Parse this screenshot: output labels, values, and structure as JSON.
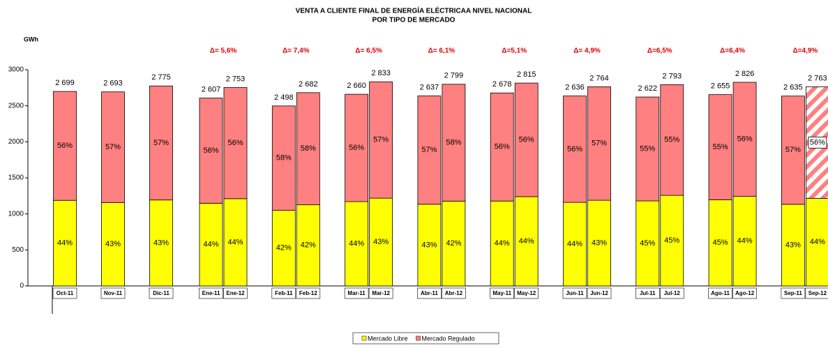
{
  "chart_data": {
    "type": "stacked_bar",
    "title": "VENTA A  CLIENTE FINAL DE ENERGÍA ELÉCTRICAA NIVEL NACIONAL",
    "subtitle": "POR TIPO DE MERCADO",
    "y_axis_label": "GWh",
    "categories": [
      "Oct-11",
      "Nov-11",
      "Dic-11",
      "Ene-11",
      "Ene-12",
      "Feb-11",
      "Feb-12",
      "Mar-11",
      "Mar-12",
      "Abr-11",
      "Abr-12",
      "May-11",
      "May-12",
      "Jun-11",
      "Jun-12",
      "Jul-11",
      "Jul-12",
      "Ago-11",
      "Ago-12",
      "Sep-11",
      "Sep-12"
    ],
    "series": [
      {
        "name": "Mercado Libre",
        "color": "#ffff00",
        "values": [
          1188,
          1158,
          1193,
          1147,
          1211,
          1049,
          1126,
          1170,
          1218,
          1134,
          1176,
          1178,
          1239,
          1160,
          1189,
          1180,
          1257,
          1195,
          1243,
          1133,
          1216
        ],
        "share_labels": [
          "44%",
          "43%",
          "43%",
          "44%",
          "44%",
          "42%",
          "42%",
          "44%",
          "43%",
          "43%",
          "42%",
          "44%",
          "44%",
          "44%",
          "43%",
          "45%",
          "45%",
          "45%",
          "44%",
          "43%",
          "44%"
        ]
      },
      {
        "name": "Mercado Regulado",
        "color": "#ff8080",
        "values": [
          1511,
          1535,
          1582,
          1460,
          1542,
          1449,
          1556,
          1490,
          1615,
          1503,
          1623,
          1500,
          1576,
          1476,
          1575,
          1442,
          1536,
          1460,
          1583,
          1502,
          1547
        ],
        "share_labels": [
          "56%",
          "57%",
          "57%",
          "56%",
          "56%",
          "58%",
          "58%",
          "56%",
          "57%",
          "57%",
          "58%",
          "56%",
          "56%",
          "56%",
          "57%",
          "55%",
          "55%",
          "55%",
          "56%",
          "57%",
          "56%"
        ],
        "hatched": [
          20
        ]
      }
    ],
    "totals": [
      2699,
      2693,
      2775,
      2607,
      2753,
      2498,
      2682,
      2660,
      2833,
      2637,
      2799,
      2678,
      2815,
      2636,
      2764,
      2622,
      2793,
      2655,
      2826,
      2635,
      2763
    ],
    "total_labels": [
      "2 699",
      "2 693",
      "2 775",
      "2 607",
      "2 753",
      "2 498",
      "2 682",
      "2 660",
      "2 833",
      "2 637",
      "2 799",
      "2 678",
      "2 815",
      "2 636",
      "2 764",
      "2 622",
      "2 793",
      "2 655",
      "2 826",
      "2 635",
      "2 763"
    ],
    "annotations": [
      "Δ= 5,6%",
      "Δ= 7,4%",
      "Δ= 6,5%",
      "Δ= 6,1%",
      "Δ=5,1%",
      "Δ= 4,9%",
      "Δ=6,5%",
      "Δ=6,4%",
      "Δ=4,9%"
    ],
    "ylim": [
      0,
      3000
    ],
    "yticks": [
      0,
      500,
      1000,
      1500,
      2000,
      2500,
      3000
    ],
    "grid": false,
    "legend": "bottom"
  }
}
